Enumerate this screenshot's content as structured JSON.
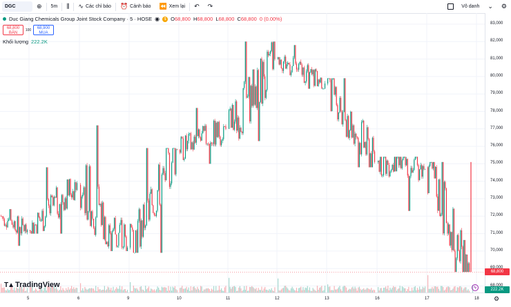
{
  "toolbar": {
    "symbol": "DGC",
    "interval": "5m",
    "indicators_label": "Các chỉ báo",
    "alert_label": "Cảnh báo",
    "replay_label": "Xem lại",
    "layout_name": "Vô danh"
  },
  "legend": {
    "name": "Duc Giang Chemicals Group Joint Stock Company · 5 · HOSE",
    "o_key": "O",
    "o_val": "68,800",
    "h_key": "H",
    "h_val": "68,800",
    "l_key": "L",
    "l_val": "68,800",
    "c_key": "C",
    "c_val": "68,800",
    "change": "0 (0.00%)"
  },
  "trade": {
    "sell_price": "68,800",
    "sell_label": "BÁN",
    "spread": "100",
    "buy_price": "68,900",
    "buy_label": "MUA"
  },
  "volume": {
    "label": "Khối lượng",
    "value": "222.2K"
  },
  "price_axis": [
    "83,000",
    "82,000",
    "81,000",
    "80,000",
    "79,000",
    "78,000",
    "77,000",
    "76,000",
    "75,000",
    "74,000",
    "73,000",
    "72,000",
    "71,000",
    "70,000",
    "69,000",
    "68,000"
  ],
  "price_tags": {
    "last_price": "68,800",
    "volume": "222.2K"
  },
  "time_axis": [
    "5",
    "6",
    "9",
    "10",
    "11",
    "12",
    "13",
    "16",
    "17",
    "18"
  ],
  "branding": "TradingView",
  "colors": {
    "up": "#089981",
    "down": "#f23645",
    "volume_up": "#a6d8cf",
    "volume_down": "#f7b3b8"
  },
  "chart_data": {
    "type": "candlestick",
    "symbol": "DGC",
    "interval": "5m",
    "ylim": [
      68000,
      83000
    ],
    "sessions": [
      {
        "day": "5",
        "open": 72000,
        "high": 72400,
        "low": 70300,
        "close": 71200
      },
      {
        "day": "6",
        "open": 71200,
        "high": 74800,
        "low": 71000,
        "close": 73900
      },
      {
        "day": "9",
        "open": 73800,
        "high": 77200,
        "low": 70000,
        "close": 70200
      },
      {
        "day": "10",
        "open": 70200,
        "high": 75900,
        "low": 69900,
        "close": 75800
      },
      {
        "day": "11",
        "open": 75800,
        "high": 78200,
        "low": 75000,
        "close": 77000
      },
      {
        "day": "12",
        "open": 77000,
        "high": 82000,
        "low": 76300,
        "close": 81000
      },
      {
        "day": "13",
        "open": 81000,
        "high": 81800,
        "low": 79300,
        "close": 79600
      },
      {
        "day": "16",
        "open": 79600,
        "high": 79900,
        "low": 74800,
        "close": 75100
      },
      {
        "day": "17",
        "open": 75100,
        "high": 75400,
        "low": 72300,
        "close": 74700
      },
      {
        "day": "18",
        "open": 74800,
        "high": 75100,
        "low": 68800,
        "close": 68800
      }
    ],
    "last_price": 68800,
    "last_volume": "222.2K"
  }
}
